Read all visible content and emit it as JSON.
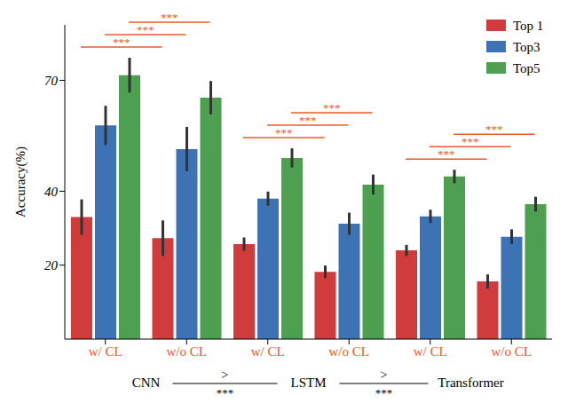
{
  "chart_data": {
    "type": "bar",
    "y_label": "Accuracy(%)",
    "categories": [
      "w/ CL",
      "w/o CL",
      "w/ CL",
      "w/o CL",
      "w/ CL",
      "w/o CL"
    ],
    "groups": [
      "CNN",
      "LSTM",
      "Transformer"
    ],
    "series": [
      {
        "name": "Top 1",
        "color": "#d03b3b",
        "values": [
          33,
          27.3,
          25.7,
          18.2,
          24,
          15.6
        ],
        "errors": [
          4.8,
          4.8,
          1.8,
          1.7,
          1.5,
          1.9
        ],
        "significance": [
          "***",
          "***",
          "***"
        ]
      },
      {
        "name": "Top3",
        "color": "#3d72b4",
        "values": [
          57.8,
          51.4,
          38,
          31.2,
          33.2,
          27.7
        ],
        "errors": [
          5.3,
          6,
          1.9,
          3,
          1.8,
          2
        ],
        "significance": [
          "***",
          "***",
          "***"
        ]
      },
      {
        "name": "Top5",
        "color": "#4da04f",
        "values": [
          71.4,
          65.3,
          49,
          41.8,
          44,
          36.5
        ],
        "errors": [
          4.7,
          4.5,
          2.6,
          2.7,
          1.8,
          2
        ],
        "significance": [
          "***",
          "***",
          "***"
        ]
      }
    ],
    "group_comparisons": [
      {
        "label": ">",
        "significance": "***"
      },
      {
        "label": ">",
        "significance": "***"
      }
    ],
    "ylim": [
      0,
      85
    ],
    "yticks": [
      20,
      40,
      70
    ],
    "legend": "upper right"
  }
}
